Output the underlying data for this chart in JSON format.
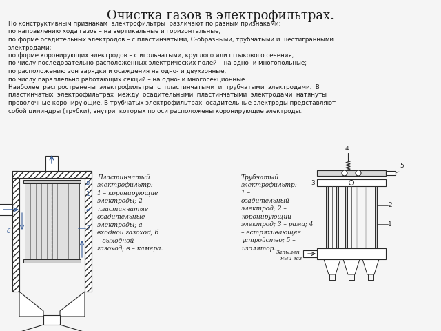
{
  "title": "Очистка газов в электрофильтрах.",
  "title_fontsize": 13,
  "body_text_lines": [
    "По конструктивным признакам  электрофильтры  различают по разным признаками:",
    "по направлению хода газов – на вертикальные и горизонтальные;",
    "по форме осадительных электродов – с пластинчатыми, С-образными, трубчатыми и шестигранными",
    "электродами;",
    "по форме коронирующих электродов – с игольчатыми, круглого или штыкового сечения;",
    "по числу последовательно расположенных электрических полей – на одно- и многопольные;",
    "по расположению зон зарядки и осаждения на одно- и двухзонные;",
    "по числу параллельно работающих секций – на одно- и многосекционные .",
    "Наиболее  распространены  электрофильтры  с  пластинчатыми  и  трубчатыми  электродами.  В",
    "пластинчатых  электрофильтрах  между  осадительными  пластинчатыми  электродами  натянуты",
    "проволочные коронирующие. В трубчатых электрофильтрах. осадительные электроды представляют",
    "собой цилиндры (трубки), внутри  которых по оси расположены коронирующие электроды."
  ],
  "caption_left": "Пластинчатый\nэлектрофильтр:\n1 – коронирующие\nэлектроды; 2 –\nпластинчатые\nосадительные\nэлектроды; а –\nвходной газоход; б\n– выходной\nгазоход; в – камера.",
  "caption_right": "Трубчатый\nэлектрофильтр:\n1 –\nосадительный\nэлектрод; 2 –\nкоронирующий\nэлектрод; 3 – рама; 4\n– встряхивающее\nустройство; 5 –\nизолятор.",
  "label_zapyl": "Запылен-\nный газ",
  "line_color": "#2a2a2a",
  "blue_color": "#3a5f9a",
  "text_color": "#1a1a1a",
  "bg_color": "#f5f5f5"
}
